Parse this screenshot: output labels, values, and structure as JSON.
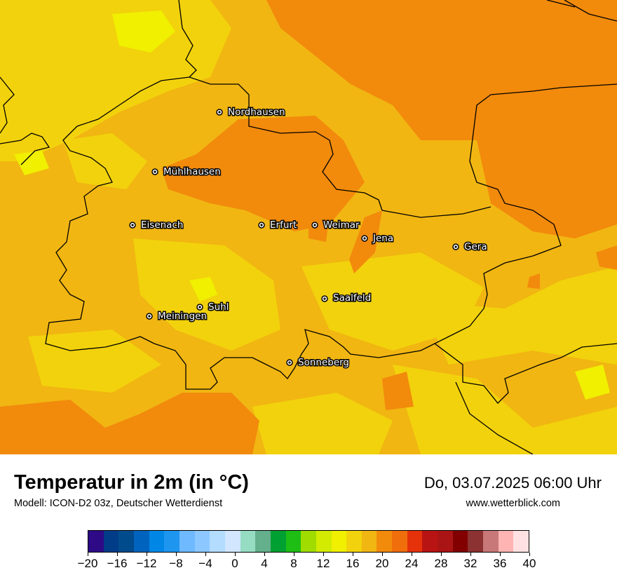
{
  "map": {
    "colors": {
      "t16_18": "#f2d20c",
      "t18_20": "#f1b612",
      "t20_22": "#f28a0c",
      "t14_16": "#f0f000",
      "border": "#000000"
    },
    "cities": [
      {
        "name": "Nordhausen"
      },
      {
        "name": "Mühlhausen"
      },
      {
        "name": "Eisenach"
      },
      {
        "name": "Erfurt"
      },
      {
        "name": "Weimar"
      },
      {
        "name": "Jena"
      },
      {
        "name": "Gera"
      },
      {
        "name": "Saalfeld"
      },
      {
        "name": "Suhl"
      },
      {
        "name": "Meiningen"
      },
      {
        "name": "Sonneberg"
      }
    ]
  },
  "footer": {
    "title": "Temperatur in 2m (in °C)",
    "model": "Modell: ICON-D2 03z, Deutscher Wetterdienst",
    "datetime": "Do, 03.07.2025 06:00 Uhr",
    "website": "www.wetterblick.com"
  },
  "legend": {
    "colors": [
      "#2e0a87",
      "#003c87",
      "#004b8c",
      "#0064be",
      "#0087e6",
      "#1e96f0",
      "#6eb9ff",
      "#8cc8ff",
      "#b4dcff",
      "#d2e6ff",
      "#96dcc3",
      "#64af8c",
      "#00a032",
      "#1ebe14",
      "#a0dc00",
      "#d2eb00",
      "#f0f000",
      "#f2d20c",
      "#f1b612",
      "#f28a0c",
      "#f06e0c",
      "#e6320a",
      "#b91414",
      "#aa1414",
      "#820000",
      "#8c3232",
      "#c87878",
      "#ffb4b4",
      "#ffe1e1"
    ],
    "tick_labels": [
      "−20",
      "−16",
      "−12",
      "−8",
      "−4",
      "0",
      "4",
      "8",
      "12",
      "16",
      "20",
      "24",
      "28",
      "32",
      "36",
      "40"
    ]
  }
}
